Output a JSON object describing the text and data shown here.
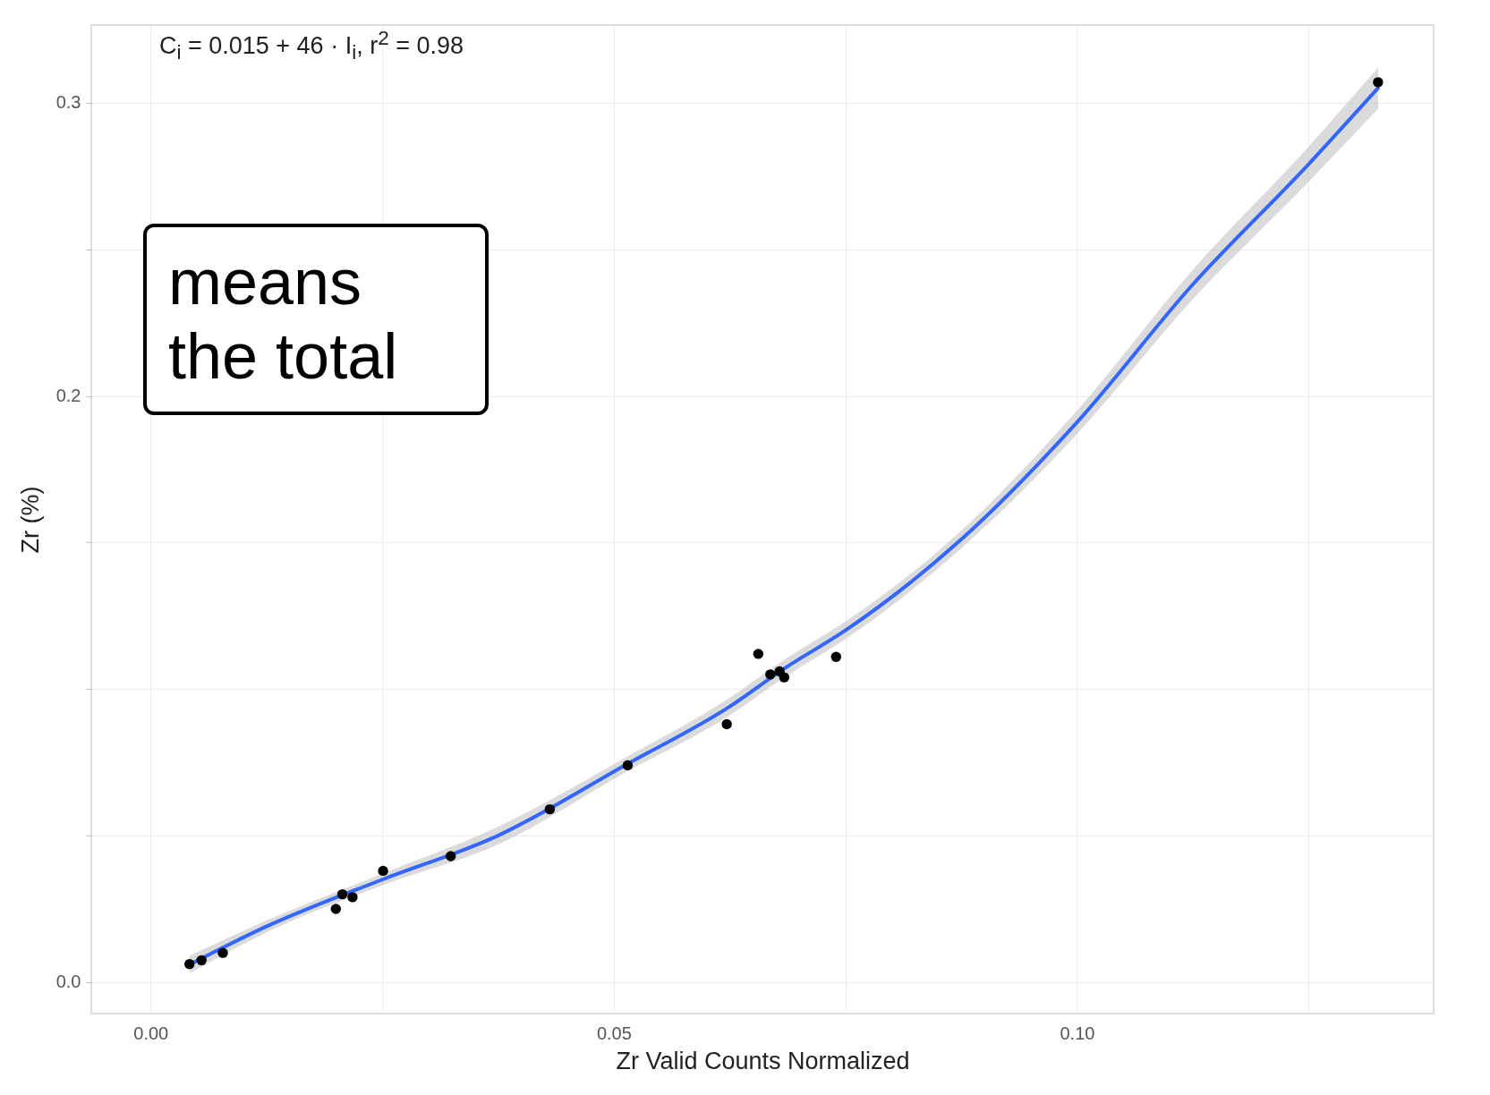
{
  "chart_data": {
    "type": "scatter",
    "xlabel": "Zr  Valid Counts Normalized",
    "ylabel": "Zr  (%)",
    "annotations": [
      "C$_{i}$ = 0.015 + 46 · I$_{i}$,  r$^{2}$ = 0.98",
      "means the total"
    ],
    "xlim": [
      -0.0064,
      0.1385
    ],
    "ylim": [
      -0.0107,
      0.3265
    ],
    "xticks": [
      {
        "value": 0,
        "label": "0.00"
      },
      {
        "value": 0.025,
        "label": null
      },
      {
        "value": 0.05,
        "label": "0.05"
      },
      {
        "value": 0.075,
        "label": null
      },
      {
        "value": 0.1,
        "label": "0.10"
      },
      {
        "value": 0.125,
        "label": null
      }
    ],
    "yticks": [
      {
        "value": 0,
        "label": "0.0"
      },
      {
        "value": 0.05,
        "label": null
      },
      {
        "value": 0.1,
        "label": null
      },
      {
        "value": 0.15,
        "label": null
      },
      {
        "value": 0.2,
        "label": "0.2"
      },
      {
        "value": 0.25,
        "label": null
      },
      {
        "value": 0.3,
        "label": "0.3"
      }
    ],
    "grid": true,
    "marker": "circle",
    "series": [
      {
        "type": "scatter",
        "color": "#000000",
        "x": [
          0.0042,
          0.0055,
          0.0078,
          0.02,
          0.0207,
          0.0218,
          0.0251,
          0.0324,
          0.0431,
          0.0515,
          0.0622,
          0.0656,
          0.0669,
          0.0679,
          0.0684,
          0.074,
          0.1325
        ],
        "values": [
          0.0062,
          0.0075,
          0.01,
          0.025,
          0.03,
          0.029,
          0.038,
          0.043,
          0.059,
          0.074,
          0.088,
          0.112,
          0.105,
          0.106,
          0.104,
          0.111,
          0.307
        ]
      },
      {
        "type": "line",
        "marker": "none",
        "color": "#3366ff",
        "x": [
          0.0042,
          0.0125,
          0.025,
          0.0375,
          0.0515,
          0.0625,
          0.0684,
          0.075,
          0.0875,
          0.1,
          0.1125,
          0.125,
          0.1325
        ],
        "values": [
          0.006,
          0.019,
          0.035,
          0.05,
          0.0745,
          0.094,
          0.107,
          0.12,
          0.151,
          0.191,
          0.238,
          0.279,
          0.305
        ],
        "lower": [
          0.003,
          0.017,
          0.033,
          0.047,
          0.072,
          0.091,
          0.104,
          0.117,
          0.148,
          0.187,
          0.233,
          0.273,
          0.298
        ],
        "upper": [
          0.009,
          0.021,
          0.037,
          0.053,
          0.077,
          0.097,
          0.11,
          0.123,
          0.154,
          0.195,
          0.243,
          0.285,
          0.312
        ]
      }
    ]
  }
}
